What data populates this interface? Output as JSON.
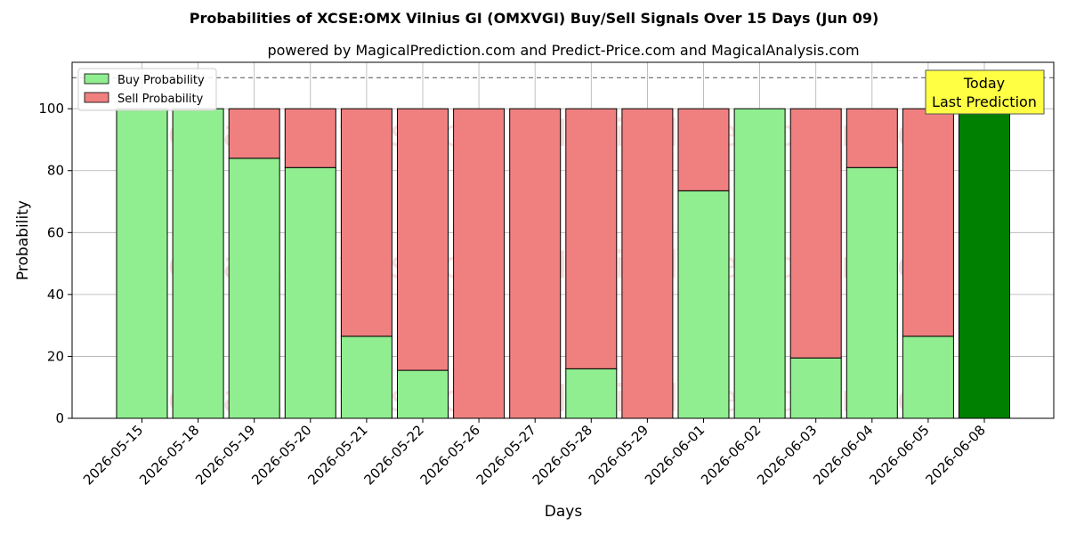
{
  "chart_data": {
    "type": "bar",
    "stacked": true,
    "title": "Probabilities of XCSE:OMX Vilnius GI (OMXVGI) Buy/Sell Signals Over 15 Days (Jun 09)",
    "subtitle": "powered by MagicalPrediction.com and Predict-Price.com and MagicalAnalysis.com",
    "xlabel": "Days",
    "ylabel": "Probability",
    "ylim": [
      0,
      115
    ],
    "yticks": [
      0,
      20,
      40,
      60,
      80,
      100
    ],
    "grid": true,
    "legend_position": "top-left",
    "reference_line": 110,
    "categories": [
      "2026-05-15",
      "2026-05-18",
      "2026-05-19",
      "2026-05-20",
      "2026-05-21",
      "2026-05-22",
      "2026-05-26",
      "2026-05-27",
      "2026-05-28",
      "2026-05-29",
      "2026-06-01",
      "2026-06-02",
      "2026-06-03",
      "2026-06-04",
      "2026-06-05",
      "2026-06-08"
    ],
    "series": [
      {
        "name": "Buy Probability",
        "color": "#90ee90",
        "values": [
          100,
          100,
          84,
          81,
          26.5,
          15.5,
          0,
          0,
          16,
          0,
          73.5,
          100,
          19.5,
          81,
          26.5,
          100
        ]
      },
      {
        "name": "Sell Probability",
        "color": "#f08080",
        "values": [
          0,
          0,
          16,
          19,
          73.5,
          84.5,
          100,
          100,
          84,
          100,
          26.5,
          0,
          80.5,
          19,
          73.5,
          0
        ]
      }
    ],
    "highlight": {
      "index": 15,
      "color": "#008000"
    },
    "annotation": {
      "lines": [
        "Today",
        "Last Prediction"
      ],
      "background": "#ffff44"
    },
    "watermarks": [
      "MagicalAnalysis.com",
      "MagicalPrediction.com"
    ]
  }
}
